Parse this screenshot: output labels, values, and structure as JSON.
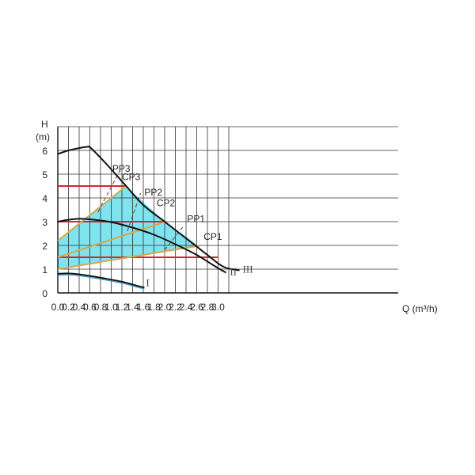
{
  "chart_data": {
    "type": "line",
    "xlabel": "Q (m³/h)",
    "ylabel_top": "H",
    "ylabel_unit": "(m)",
    "xlim": [
      0,
      3.2
    ],
    "ylim": [
      0,
      7
    ],
    "x_ticks": [
      "0.0",
      "0.2",
      "0.4",
      "0.6",
      "0.8",
      "1.0",
      "1.2",
      "1.4",
      "1.6",
      "1.8",
      "2.0",
      "2.2",
      "2.4",
      "2.6",
      "2.8",
      "3.0"
    ],
    "y_ticks": [
      "0",
      "1",
      "2",
      "3",
      "4",
      "5",
      "6"
    ],
    "grid": true,
    "colors": {
      "grid": "#333333",
      "region": "#7fe3f0",
      "constant_pressure": "#d6262c",
      "proportional_pressure": "#d8a84a",
      "curve": "#111111",
      "curve_I": "#3a9fd6"
    },
    "region_polygon": [
      [
        0,
        2.2
      ],
      [
        1.28,
        4.5
      ],
      [
        2.0,
        3.0
      ],
      [
        2.66,
        1.95
      ],
      [
        0,
        1.0
      ]
    ],
    "constant_pressure_lines": [
      {
        "name": "CP3",
        "y": 4.5,
        "x": [
          0,
          1.28
        ]
      },
      {
        "name": "CP2",
        "y": 3.0,
        "x": [
          0,
          2.0
        ]
      },
      {
        "name": "CP1",
        "y": 1.5,
        "x": [
          0,
          3.0
        ]
      }
    ],
    "proportional_pressure_lines": [
      {
        "name": "PP3",
        "points": [
          [
            0,
            2.2
          ],
          [
            1.28,
            4.5
          ]
        ]
      },
      {
        "name": "PP2",
        "points": [
          [
            0,
            1.5
          ],
          [
            2.02,
            3.0
          ]
        ]
      },
      {
        "name": "PP1",
        "points": [
          [
            0,
            1.0
          ],
          [
            2.66,
            2.0
          ]
        ]
      }
    ],
    "dashed_lines": [
      {
        "points": [
          [
            0.75,
            3.4
          ],
          [
            1.15,
            5.1
          ]
        ]
      },
      {
        "points": [
          [
            1.3,
            2.6
          ],
          [
            1.55,
            4.2
          ]
        ]
      },
      {
        "points": [
          [
            2.0,
            1.8
          ],
          [
            2.35,
            2.8
          ]
        ]
      }
    ],
    "speed_curves": [
      {
        "name": "III",
        "points": [
          [
            0,
            5.85
          ],
          [
            0.2,
            6.0
          ],
          [
            0.4,
            6.1
          ],
          [
            0.55,
            6.15
          ],
          [
            0.62,
            6.1
          ],
          [
            0.9,
            5.45
          ],
          [
            1.28,
            4.5
          ],
          [
            1.6,
            3.7
          ],
          [
            2.0,
            3.0
          ],
          [
            2.4,
            2.3
          ],
          [
            2.8,
            1.6
          ],
          [
            3.1,
            1.1
          ],
          [
            3.4,
            0.95
          ]
        ]
      },
      {
        "name": "II",
        "points": [
          [
            0,
            3.0
          ],
          [
            0.2,
            3.08
          ],
          [
            0.4,
            3.12
          ],
          [
            0.6,
            3.1
          ],
          [
            1.0,
            2.98
          ],
          [
            1.4,
            2.75
          ],
          [
            1.8,
            2.45
          ],
          [
            2.2,
            2.05
          ],
          [
            2.6,
            1.6
          ],
          [
            2.9,
            1.18
          ],
          [
            3.15,
            0.85
          ]
        ]
      },
      {
        "name": "I",
        "points": [
          [
            0,
            0.8
          ],
          [
            0.2,
            0.82
          ],
          [
            0.5,
            0.75
          ],
          [
            0.9,
            0.6
          ],
          [
            1.2,
            0.47
          ],
          [
            1.45,
            0.32
          ],
          [
            1.62,
            0.22
          ]
        ]
      }
    ],
    "series_labels": [
      {
        "text": "PP3",
        "x": 1.02,
        "y": 5.1
      },
      {
        "text": "CP3",
        "x": 1.2,
        "y": 4.75
      },
      {
        "text": "PP2",
        "x": 1.62,
        "y": 4.1
      },
      {
        "text": "CP2",
        "x": 1.85,
        "y": 3.65
      },
      {
        "text": "PP1",
        "x": 2.42,
        "y": 2.98
      },
      {
        "text": "CP1",
        "x": 2.73,
        "y": 2.23
      },
      {
        "text": "I",
        "x": 1.65,
        "y": 0.28
      },
      {
        "text": "II",
        "x": 3.22,
        "y": 0.75
      },
      {
        "text": "III",
        "x": 3.46,
        "y": 0.85
      }
    ]
  }
}
